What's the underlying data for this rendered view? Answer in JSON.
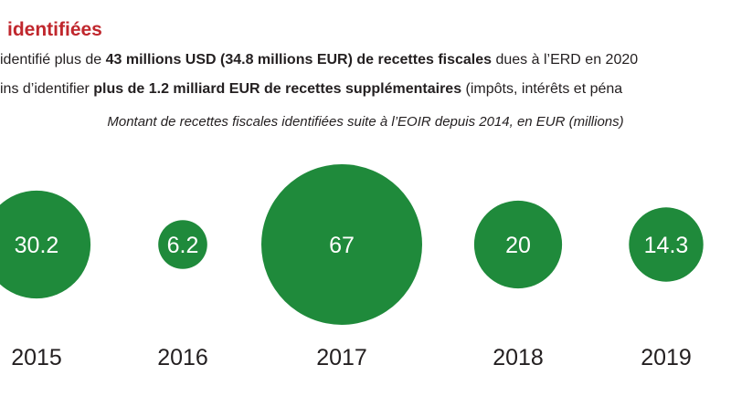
{
  "heading": "identifiées",
  "text": {
    "line1": {
      "prefix": "identifié plus de ",
      "bold": "43 millions USD (34.8 millions EUR) de recettes fiscales",
      "suffix": " dues à l’ERD en 2020"
    },
    "line2": {
      "prefix": "ins d’identifier ",
      "bold": "plus de 1.2 milliard EUR de recettes supplémentaires",
      "suffix": " (impôts, intérêts et péna"
    }
  },
  "chart_data": {
    "type": "bubble",
    "title": "Montant de recettes fiscales identifiées suite à l’EOIR depuis 2014, en EUR (millions)",
    "categories": [
      "2015",
      "2016",
      "2017",
      "2018",
      "2019"
    ],
    "values": [
      30.2,
      6.2,
      67,
      20,
      14.3
    ],
    "value_labels": [
      "30.2",
      "6.2",
      "67",
      "20",
      "14.3"
    ],
    "color": "#1f8a3b",
    "label_color": "#ffffff"
  }
}
